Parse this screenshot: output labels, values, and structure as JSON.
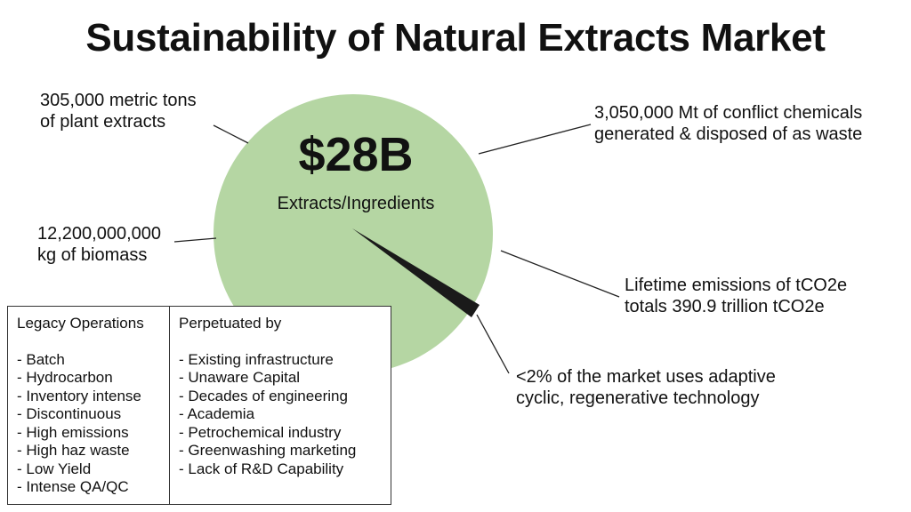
{
  "title": "Sustainability of Natural Extracts Market",
  "center": {
    "value": "$28B",
    "label": "Extracts/Ingredients"
  },
  "callouts": {
    "top_left": [
      "305,000 metric tons",
      "of plant extracts"
    ],
    "top_right": [
      "3,050,000 Mt of conflict chemicals",
      "generated & disposed of as waste"
    ],
    "mid_left": [
      "12,200,000,000",
      "kg of biomass"
    ],
    "mid_right": [
      "Lifetime emissions of tCO2e",
      "totals 390.9 trillion tCO2e"
    ],
    "bottom_right": [
      "<2% of the market uses adaptive",
      "cyclic, regenerative technology"
    ]
  },
  "table": {
    "left_header": "Legacy Operations",
    "left_items": [
      "- Batch",
      "- Hydrocarbon",
      "- Inventory intense",
      "- Discontinuous",
      "- High emissions",
      "- High haz waste",
      "- Low Yield",
      "- Intense QA/QC"
    ],
    "right_header": "Perpetuated by",
    "right_items": [
      "- Existing infrastructure",
      "- Unaware Capital",
      "- Decades of engineering",
      "- Academia",
      "- Petrochemical industry",
      "- Greenwashing marketing",
      "- Lack of R&D Capability"
    ]
  },
  "colors": {
    "circle": "#b5d6a3",
    "slice": "#1a1a1a",
    "line": "#222222"
  },
  "slice_share_percent": 2
}
